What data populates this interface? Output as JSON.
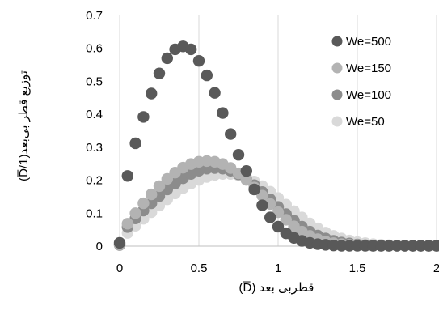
{
  "chart_data": {
    "type": "scatter",
    "title": "",
    "xlabel": "قطربی بعد (D̅)",
    "ylabel": "توزیع قطر بی‌بعد(1/D̅)",
    "xlim": [
      0,
      2
    ],
    "ylim": [
      0,
      0.7
    ],
    "xticks": [
      0,
      0.5,
      1,
      1.5,
      2
    ],
    "yticks": [
      0,
      0.1,
      0.2,
      0.3,
      0.4,
      0.5,
      0.6,
      0.7
    ],
    "x_tick_labels": [
      "0",
      "0.5",
      "1",
      "1.5",
      "2"
    ],
    "y_tick_labels": [
      "0",
      "0.1",
      "0.2",
      "0.3",
      "0.4",
      "0.5",
      "0.6",
      "0.7"
    ],
    "grid": "vertical",
    "legend_position": "right",
    "x": [
      0,
      0.05,
      0.1,
      0.15,
      0.2,
      0.25,
      0.3,
      0.35,
      0.4,
      0.45,
      0.5,
      0.55,
      0.6,
      0.65,
      0.7,
      0.75,
      0.8,
      0.85,
      0.9,
      0.95,
      1.0,
      1.05,
      1.1,
      1.15,
      1.2,
      1.25,
      1.3,
      1.35,
      1.4,
      1.45,
      1.5,
      1.55,
      1.6,
      1.65,
      1.7,
      1.75,
      1.8,
      1.85,
      1.9,
      1.95,
      2.0
    ],
    "series": [
      {
        "name": "We=50",
        "color": "#d9d9d9",
        "values": [
          0.003,
          0.04,
          0.062,
          0.083,
          0.103,
          0.123,
          0.142,
          0.16,
          0.176,
          0.19,
          0.201,
          0.21,
          0.216,
          0.219,
          0.219,
          0.215,
          0.208,
          0.196,
          0.182,
          0.165,
          0.146,
          0.126,
          0.106,
          0.087,
          0.069,
          0.054,
          0.041,
          0.031,
          0.023,
          0.017,
          0.012,
          0.009,
          0.006,
          0.004,
          0.003,
          0.002,
          0.002,
          0.001,
          0.001,
          0.001,
          0.001
        ]
      },
      {
        "name": "We=100",
        "color": "#8c8c8c",
        "values": [
          0.004,
          0.058,
          0.084,
          0.108,
          0.13,
          0.152,
          0.172,
          0.19,
          0.206,
          0.219,
          0.229,
          0.235,
          0.237,
          0.235,
          0.229,
          0.218,
          0.203,
          0.185,
          0.164,
          0.142,
          0.119,
          0.097,
          0.077,
          0.059,
          0.044,
          0.032,
          0.023,
          0.016,
          0.011,
          0.008,
          0.005,
          0.003,
          0.002,
          0.002,
          0.001,
          0.001,
          0.001,
          0.001,
          0.001,
          0.001,
          0.001
        ]
      },
      {
        "name": "We=150",
        "color": "#b3b3b3",
        "values": [
          0.005,
          0.068,
          0.1,
          0.13,
          0.157,
          0.182,
          0.204,
          0.223,
          0.238,
          0.249,
          0.256,
          0.258,
          0.256,
          0.249,
          0.237,
          0.221,
          0.201,
          0.178,
          0.153,
          0.128,
          0.103,
          0.08,
          0.06,
          0.044,
          0.031,
          0.021,
          0.014,
          0.009,
          0.006,
          0.004,
          0.003,
          0.002,
          0.001,
          0.001,
          0.001,
          0.001,
          0.001,
          0.001,
          0.001,
          0.001,
          0.001
        ]
      },
      {
        "name": "We=500",
        "color": "#595959",
        "values": [
          0.01,
          0.213,
          0.312,
          0.392,
          0.463,
          0.524,
          0.57,
          0.597,
          0.606,
          0.597,
          0.562,
          0.518,
          0.465,
          0.404,
          0.34,
          0.277,
          0.228,
          0.172,
          0.124,
          0.087,
          0.059,
          0.039,
          0.025,
          0.016,
          0.01,
          0.006,
          0.004,
          0.002,
          0.001,
          0.001,
          0.001,
          0.001,
          0.001,
          0.001,
          0.001,
          0.001,
          0.001,
          0.001,
          0.001,
          0.001,
          0.001
        ]
      }
    ],
    "legend_order": [
      "We=500",
      "We=150",
      "We=100",
      "We=50"
    ]
  }
}
